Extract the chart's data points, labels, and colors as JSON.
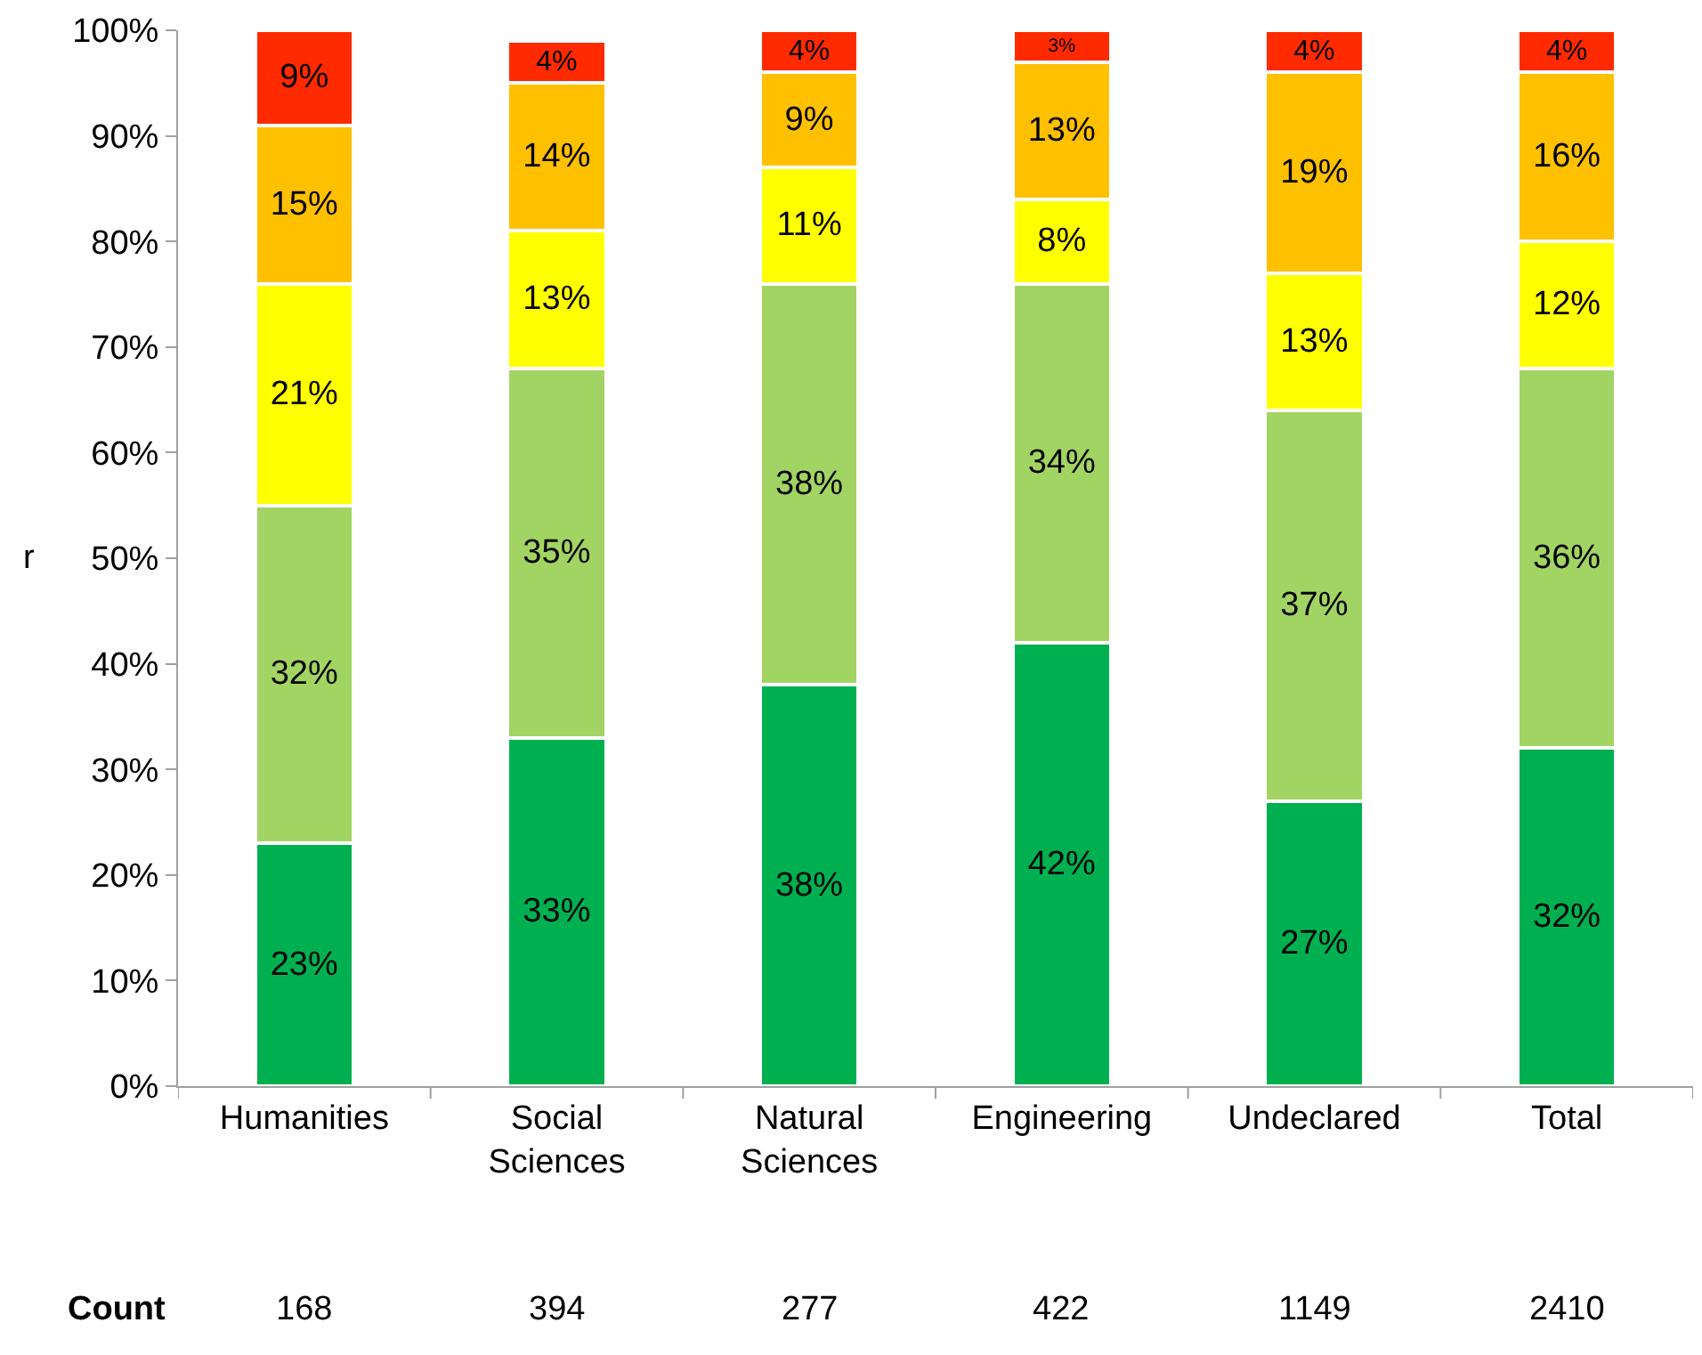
{
  "chart_data": {
    "type": "bar",
    "stacked": true,
    "ylabel": "r",
    "categories": [
      "Humanities",
      "Social\nSciences",
      "Natural\nSciences",
      "Engineering",
      "Undeclared",
      "Total"
    ],
    "series": [
      {
        "color": "#00b050",
        "values": [
          23,
          33,
          38,
          42,
          27,
          32
        ],
        "value_labels": [
          "23%",
          "33%",
          "38%",
          "42%",
          "27%",
          "32%"
        ]
      },
      {
        "color": "#a2d464",
        "values": [
          32,
          35,
          38,
          34,
          37,
          36
        ],
        "value_labels": [
          "32%",
          "35%",
          "38%",
          "34%",
          "37%",
          "36%"
        ]
      },
      {
        "color": "#ffff00",
        "values": [
          21,
          13,
          11,
          8,
          13,
          12
        ],
        "value_labels": [
          "21%",
          "13%",
          "11%",
          "8%",
          "13%",
          "12%"
        ]
      },
      {
        "color": "#ffc000",
        "values": [
          15,
          14,
          9,
          13,
          19,
          16
        ],
        "value_labels": [
          "15%",
          "14%",
          "9%",
          "13%",
          "19%",
          "16%"
        ]
      },
      {
        "color": "#ff2a00",
        "values": [
          9,
          4,
          4,
          3,
          4,
          4
        ],
        "value_labels": [
          "9%",
          "4%",
          "4%",
          "3%",
          "4%",
          "4%"
        ]
      }
    ],
    "ylim": [
      0,
      100
    ],
    "yticks": [
      {
        "value": 0,
        "label": "0%"
      },
      {
        "value": 10,
        "label": "10%"
      },
      {
        "value": 20,
        "label": "20%"
      },
      {
        "value": 30,
        "label": "30%"
      },
      {
        "value": 40,
        "label": "40%"
      },
      {
        "value": 50,
        "label": "50%"
      },
      {
        "value": 60,
        "label": "60%"
      },
      {
        "value": 70,
        "label": "70%"
      },
      {
        "value": 80,
        "label": "80%"
      },
      {
        "value": 90,
        "label": "90%"
      },
      {
        "value": 100,
        "label": "100%"
      }
    ],
    "annotations": [
      "Count",
      "168",
      "394",
      "277",
      "422",
      "1149",
      "2410"
    ]
  }
}
